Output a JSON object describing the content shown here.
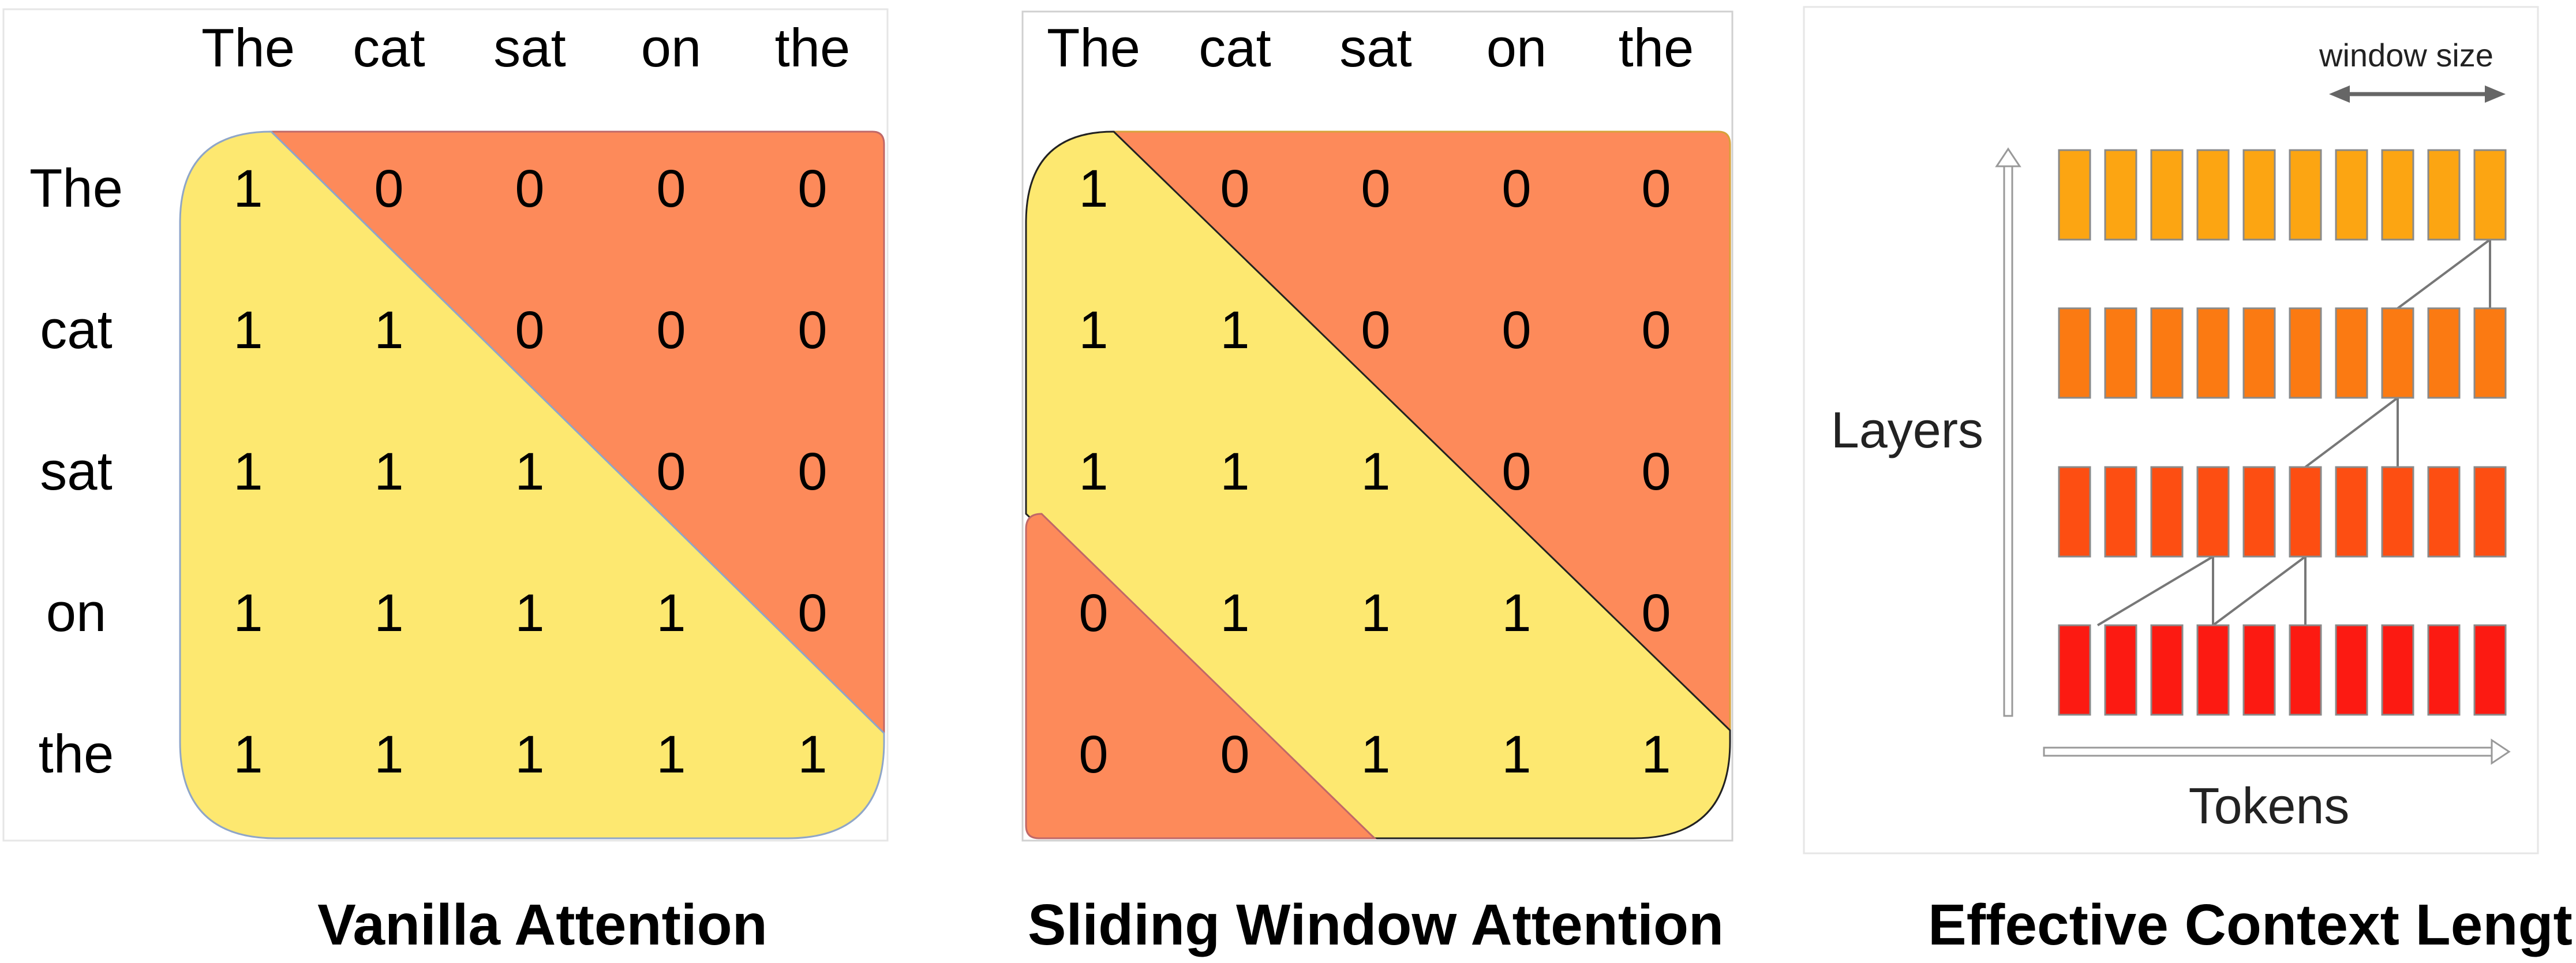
{
  "colors": {
    "allowed": "#fde870",
    "masked": "#fd8a5a",
    "layer_colors": [
      "#fca512",
      "#fb7a12",
      "#fd4e12",
      "#fc1a12"
    ],
    "cell_border": "#7a7a7a",
    "connector": "#777777"
  },
  "panels": [
    {
      "caption": "Vanilla Attention",
      "col_tokens": [
        "The",
        "cat",
        "sat",
        "on",
        "the"
      ],
      "row_tokens": [
        "The",
        "cat",
        "sat",
        "on",
        "the"
      ],
      "matrix": [
        [
          "1",
          "0",
          "0",
          "0",
          "0"
        ],
        [
          "1",
          "1",
          "0",
          "0",
          "0"
        ],
        [
          "1",
          "1",
          "1",
          "0",
          "0"
        ],
        [
          "1",
          "1",
          "1",
          "1",
          "0"
        ],
        [
          "1",
          "1",
          "1",
          "1",
          "1"
        ]
      ]
    },
    {
      "caption": "Sliding Window Attention",
      "col_tokens": [
        "The",
        "cat",
        "sat",
        "on",
        "the"
      ],
      "matrix": [
        [
          "1",
          "0",
          "0",
          "0",
          "0"
        ],
        [
          "1",
          "1",
          "0",
          "0",
          "0"
        ],
        [
          "1",
          "1",
          "1",
          "0",
          "0"
        ],
        [
          "0",
          "1",
          "1",
          "1",
          "0"
        ],
        [
          "0",
          "0",
          "1",
          "1",
          "1"
        ]
      ]
    },
    {
      "caption": "Effective Context Length",
      "window_label": "window size",
      "y_label": "Layers",
      "x_label": "Tokens",
      "layers": 4,
      "tokens_per_layer": 10
    }
  ]
}
